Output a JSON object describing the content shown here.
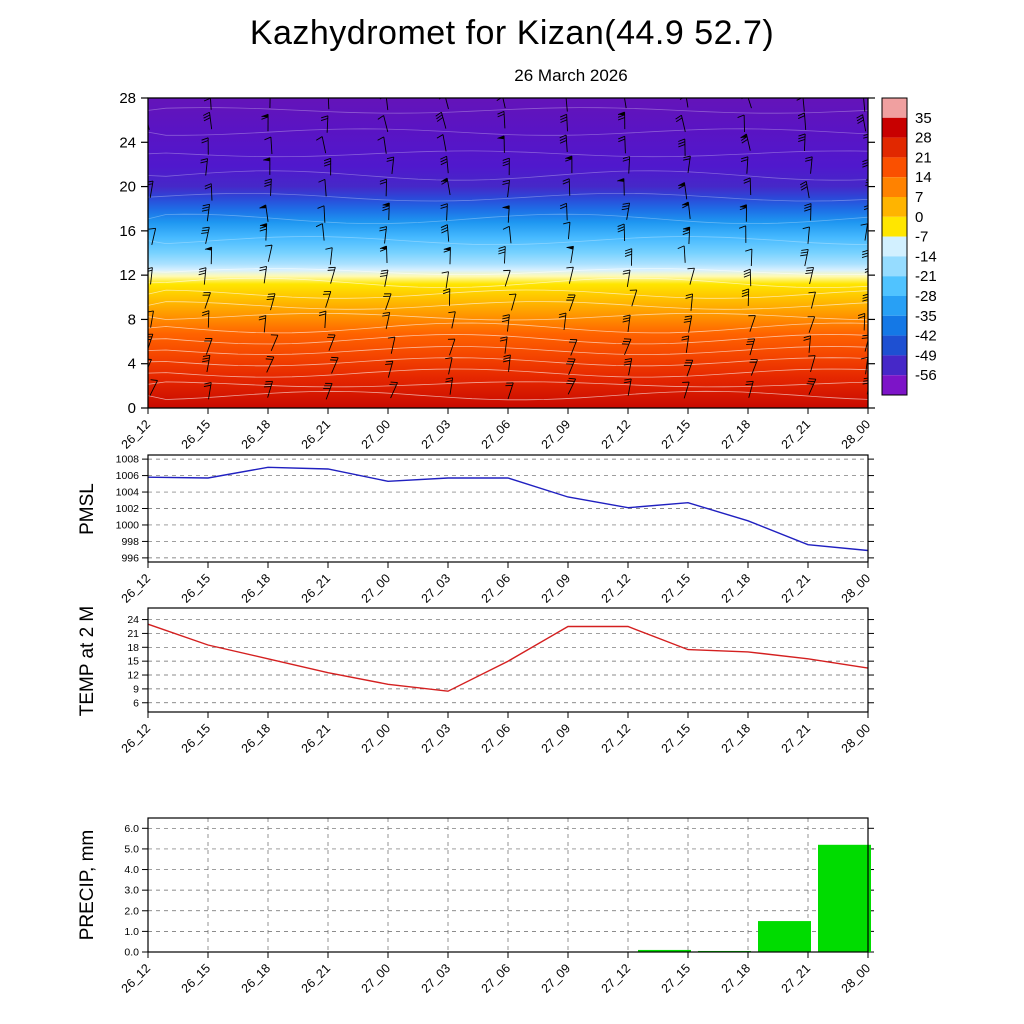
{
  "header": {
    "title": "Kazhydromet for Kizan(44.9 52.7)",
    "subtitle": "26 March 2026"
  },
  "time_labels": [
    "26_12",
    "26_15",
    "26_18",
    "26_21",
    "27_00",
    "27_03",
    "27_06",
    "27_09",
    "27_12",
    "27_15",
    "27_18",
    "27_21",
    "28_00"
  ],
  "chart_data": [
    {
      "id": "temperature_cross_section",
      "type": "heatmap",
      "title": "26 March 2026",
      "xlabel": "",
      "ylabel": "",
      "x": [
        "26_12",
        "26_15",
        "26_18",
        "26_21",
        "27_00",
        "27_03",
        "27_06",
        "27_09",
        "27_12",
        "27_15",
        "27_18",
        "27_21",
        "28_00"
      ],
      "y_ticks": [
        "0",
        "4",
        "8",
        "12",
        "16",
        "20",
        "24",
        "28"
      ],
      "ylim": [
        0,
        28
      ],
      "description": "Vertical temperature cross-section over time: warm red near the surface (0-8), orange to yellow around 8-12, light blue 13-18, dark blue to purple 19-28, overlaid with black wind barbs and thin white contour lines",
      "overlay": "wind-barbs",
      "colorbar": {
        "ticks": [
          "35",
          "28",
          "21",
          "14",
          "7",
          "0",
          "-7",
          "-14",
          "-21",
          "-28",
          "-35",
          "-42",
          "-49",
          "-56"
        ],
        "colors": [
          "#f0a0a0",
          "#c80000",
          "#e12800",
          "#fa5000",
          "#ff8200",
          "#ffb400",
          "#ffe600",
          "#d2f0ff",
          "#96dcff",
          "#50c3ff",
          "#28a0f5",
          "#1478e6",
          "#1e50d2",
          "#4628c8",
          "#7d14c8"
        ]
      },
      "gradient_stops": [
        {
          "pos": 0.0,
          "color": "#6414b9"
        },
        {
          "pos": 0.1,
          "color": "#5a14c3"
        },
        {
          "pos": 0.22,
          "color": "#5018cd"
        },
        {
          "pos": 0.285,
          "color": "#4628c8"
        },
        {
          "pos": 0.32,
          "color": "#2d46d7"
        },
        {
          "pos": 0.36,
          "color": "#1e6ee6"
        },
        {
          "pos": 0.4,
          "color": "#1e96f0"
        },
        {
          "pos": 0.45,
          "color": "#46b9ff"
        },
        {
          "pos": 0.5,
          "color": "#78d2ff"
        },
        {
          "pos": 0.535,
          "color": "#aae1ff"
        },
        {
          "pos": 0.555,
          "color": "#d7f0ff"
        },
        {
          "pos": 0.575,
          "color": "#fffab4"
        },
        {
          "pos": 0.6,
          "color": "#ffe600"
        },
        {
          "pos": 0.645,
          "color": "#ffc300"
        },
        {
          "pos": 0.7,
          "color": "#ff9600"
        },
        {
          "pos": 0.76,
          "color": "#ff6400"
        },
        {
          "pos": 0.83,
          "color": "#f54600"
        },
        {
          "pos": 0.9,
          "color": "#e62800"
        },
        {
          "pos": 1.0,
          "color": "#c80a00"
        }
      ]
    },
    {
      "id": "pmsl",
      "type": "line",
      "ylabel": "PMSL",
      "color": "#2020c0",
      "x": [
        "26_12",
        "26_15",
        "26_18",
        "26_21",
        "27_00",
        "27_03",
        "27_06",
        "27_09",
        "27_12",
        "27_15",
        "27_18",
        "27_21",
        "28_00"
      ],
      "values": [
        1005.8,
        1005.7,
        1007.0,
        1006.8,
        1005.3,
        1005.7,
        1005.7,
        1003.4,
        1002.1,
        1002.7,
        1000.5,
        997.6,
        996.9
      ],
      "yticks": [
        "996",
        "998",
        "1000",
        "1002",
        "1004",
        "1006",
        "1008"
      ],
      "ytick_values": [
        996,
        998,
        1000,
        1002,
        1004,
        1006,
        1008
      ],
      "ylim": [
        995.5,
        1008.5
      ],
      "grid": "horizontal-dashed"
    },
    {
      "id": "temp_2m",
      "type": "line",
      "ylabel": "TEMP at 2 M",
      "color": "#d42020",
      "x": [
        "26_12",
        "26_15",
        "26_18",
        "26_21",
        "27_00",
        "27_03",
        "27_06",
        "27_09",
        "27_12",
        "27_15",
        "27_18",
        "27_21",
        "28_00"
      ],
      "values": [
        23,
        18.5,
        15.5,
        12.5,
        10,
        8.5,
        15,
        22.5,
        22.5,
        17.5,
        17,
        15.5,
        13.5
      ],
      "yticks": [
        "6",
        "9",
        "12",
        "15",
        "18",
        "21",
        "24"
      ],
      "ytick_values": [
        6,
        9,
        12,
        15,
        18,
        21,
        24
      ],
      "ylim": [
        4,
        26.5
      ],
      "grid": "horizontal-dashed"
    },
    {
      "id": "precip",
      "type": "bar",
      "ylabel": "PRECIP, mm",
      "color": "#00dc00",
      "x": [
        "26_12",
        "26_15",
        "26_18",
        "26_21",
        "27_00",
        "27_03",
        "27_06",
        "27_09",
        "27_12",
        "27_15",
        "27_18",
        "27_21",
        "28_00"
      ],
      "values": [
        0,
        0,
        0,
        0,
        0,
        0,
        0,
        0,
        0,
        0.1,
        0.05,
        1.5,
        5.2
      ],
      "yticks": [
        "0.0",
        "1.0",
        "2.0",
        "3.0",
        "4.0",
        "5.0",
        "6.0"
      ],
      "ytick_values": [
        0,
        1,
        2,
        3,
        4,
        5,
        6
      ],
      "ylim": [
        0,
        6.5
      ],
      "grid": "both-dashed"
    }
  ]
}
